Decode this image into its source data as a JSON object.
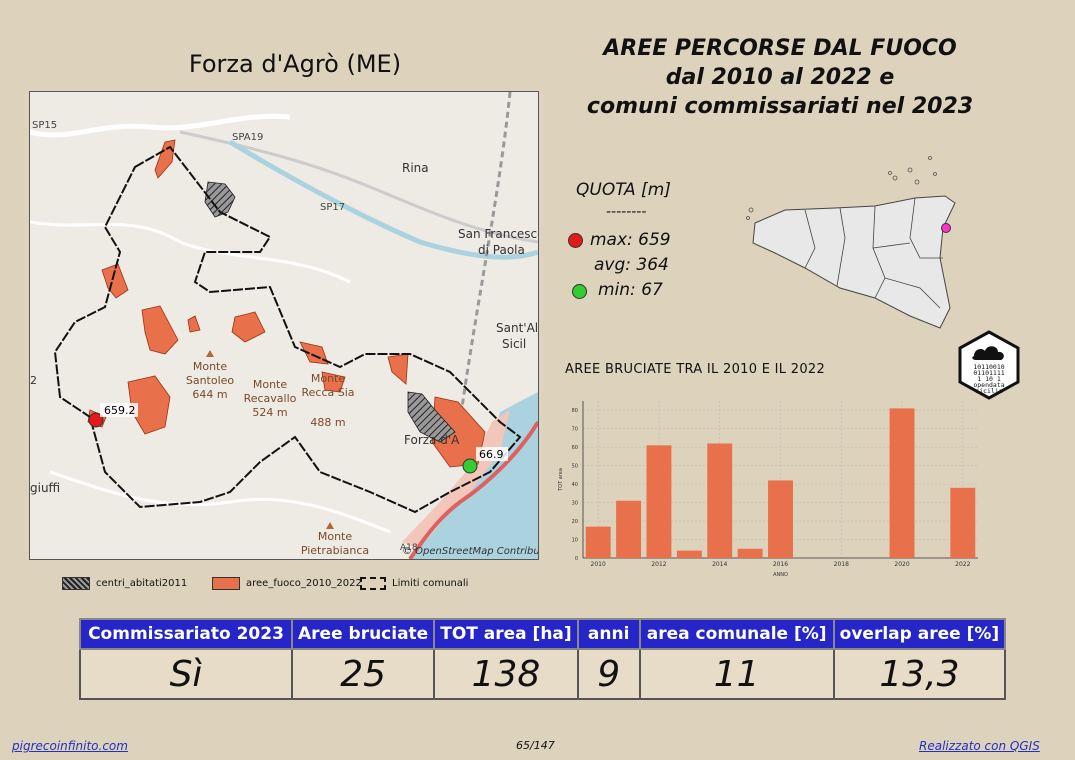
{
  "comune_title": "Forza d'Agrò (ME)",
  "main_title": [
    "AREE PERCORSE DAL FUOCO",
    "dal 2010 al 2022 e",
    "comuni commissariati nel 2023"
  ],
  "quota": {
    "title": "QUOTA [m]",
    "separator": "--------",
    "max": "max: 659",
    "avg": "avg: 364",
    "min": "min: 67",
    "max_color": "#e31a1c",
    "min_color": "#33cc33"
  },
  "map": {
    "roads": [
      "SP15",
      "SPA19",
      "SP17",
      "A18"
    ],
    "places": [
      "Rina",
      "San Francesco",
      "di Paola",
      "Sant'Al",
      "Sicil",
      "Forza d'A",
      "giuffi"
    ],
    "peaks": [
      {
        "name": "Monte",
        "sub": "Santoleo",
        "elev": "644 m"
      },
      {
        "name": "Monte",
        "sub": "Recavallo",
        "elev": "524 m"
      },
      {
        "name": "Monte",
        "sub": "Recca Sia",
        "elev": "488 m"
      },
      {
        "name": "Monte",
        "sub": "Pietrabianca",
        "elev": ""
      }
    ],
    "max_label": "659.2",
    "min_label": "66.9",
    "attribution": "© OpenStreetMap Contributor",
    "edge_label": "2"
  },
  "logo": {
    "line1": "10110010",
    "line2": "01101111",
    "line3": "1    10 1",
    "name1": "opendata",
    "name2": "sicilia"
  },
  "chart_title": "AREE BRUCIATE TRA IL 2010 E IL 2022",
  "chart_data": {
    "type": "bar",
    "title": "AREE BRUCIATE TRA IL 2010 E IL 2022",
    "xlabel": "ANNO",
    "ylabel": "TOT area",
    "x": [
      2010,
      2011,
      2012,
      2013,
      2014,
      2015,
      2016,
      2017,
      2018,
      2019,
      2020,
      2021,
      2022
    ],
    "values": [
      17,
      31,
      61,
      4,
      62,
      5,
      42,
      0,
      0,
      0,
      81,
      0,
      38
    ],
    "x_ticks": [
      "2010",
      "2012",
      "2014",
      "2016",
      "2018",
      "2020",
      "2022"
    ],
    "y_ticks": [
      "0",
      "10",
      "20",
      "30",
      "40",
      "50",
      "60",
      "70",
      "80"
    ],
    "ylim": [
      0,
      85
    ],
    "grid": true,
    "bar_color": "#e8704a"
  },
  "legend": [
    {
      "label": "centri_abitati2011",
      "kind": "hatch"
    },
    {
      "label": "aree_fuoco_2010_2022",
      "kind": "fire",
      "color": "#e8704a"
    },
    {
      "label": "Limiti comunali",
      "kind": "boundary"
    }
  ],
  "table": {
    "headers": [
      "Commissariato 2023",
      "Aree bruciate",
      "TOT area [ha]",
      "anni",
      "area comunale [%]",
      "overlap aree [%]"
    ],
    "values": [
      "Sì",
      "25",
      "138",
      "9",
      "11",
      "13,3"
    ]
  },
  "footer": {
    "left": "pigrecoinfinito.com",
    "center": "65/147",
    "right": "Realizzato con QGIS"
  }
}
